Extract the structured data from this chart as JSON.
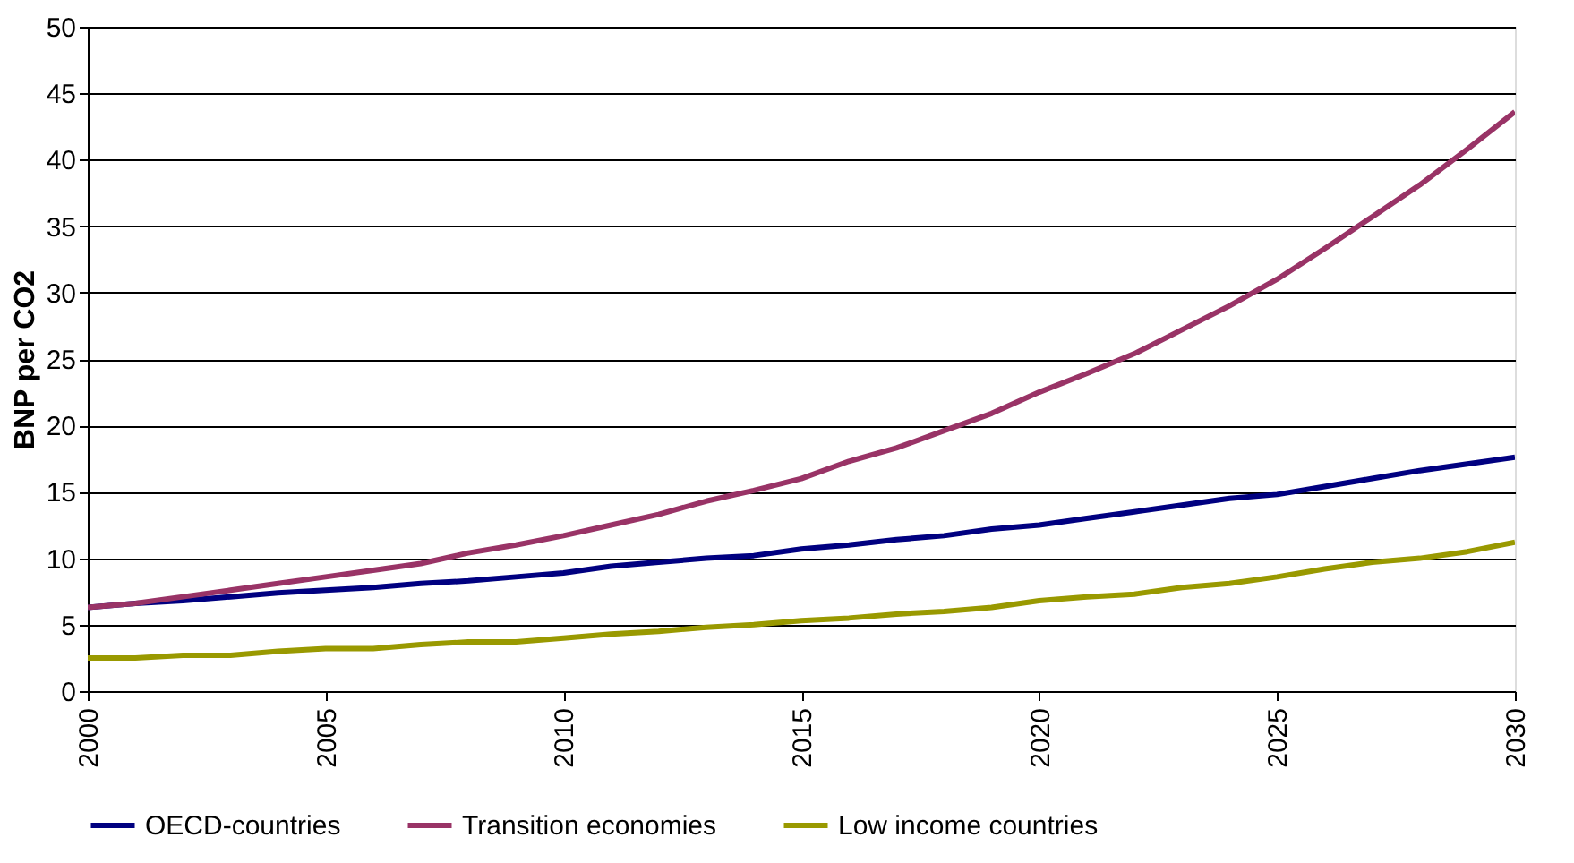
{
  "chart_data": {
    "type": "line",
    "ylabel": "BNP per CO2",
    "x": [
      2000,
      2001,
      2002,
      2003,
      2004,
      2005,
      2006,
      2007,
      2008,
      2009,
      2010,
      2011,
      2012,
      2013,
      2014,
      2015,
      2016,
      2017,
      2018,
      2019,
      2020,
      2021,
      2022,
      2023,
      2024,
      2025,
      2026,
      2027,
      2028,
      2029,
      2030
    ],
    "series": [
      {
        "name": "OECD-countries",
        "color": "#000080",
        "values": [
          6.3,
          6.6,
          6.8,
          7.1,
          7.4,
          7.6,
          7.8,
          8.1,
          8.3,
          8.6,
          8.9,
          9.4,
          9.7,
          10.0,
          10.2,
          10.7,
          11.0,
          11.4,
          11.7,
          12.2,
          12.5,
          13.0,
          13.5,
          14.0,
          14.5,
          14.8,
          15.4,
          16.0,
          16.6,
          17.1,
          17.6
        ]
      },
      {
        "name": "Transition economies",
        "color": "#993366",
        "values": [
          6.3,
          6.6,
          7.1,
          7.6,
          8.1,
          8.6,
          9.1,
          9.6,
          10.4,
          11.0,
          11.7,
          12.5,
          13.3,
          14.3,
          15.1,
          16.0,
          17.3,
          18.3,
          19.6,
          20.9,
          22.5,
          23.9,
          25.4,
          27.2,
          29.0,
          31.0,
          33.3,
          35.7,
          38.1,
          40.8,
          43.6
        ]
      },
      {
        "name": "Low  income countries",
        "color": "#999900",
        "values": [
          2.5,
          2.5,
          2.7,
          2.7,
          3.0,
          3.2,
          3.2,
          3.5,
          3.7,
          3.7,
          4.0,
          4.3,
          4.5,
          4.8,
          5.0,
          5.3,
          5.5,
          5.8,
          6.0,
          6.3,
          6.8,
          7.1,
          7.3,
          7.8,
          8.1,
          8.6,
          9.2,
          9.7,
          10.0,
          10.5,
          11.2
        ]
      }
    ],
    "xlim": [
      2000,
      2030
    ],
    "xticks": [
      2000,
      2005,
      2010,
      2015,
      2020,
      2025,
      2030
    ],
    "ylim": [
      0,
      50
    ],
    "yticks": [
      0,
      5,
      10,
      15,
      20,
      25,
      30,
      35,
      40,
      45,
      50
    ],
    "grid": "y",
    "legend": "bottom",
    "marker": "none",
    "line_style": "solid"
  }
}
